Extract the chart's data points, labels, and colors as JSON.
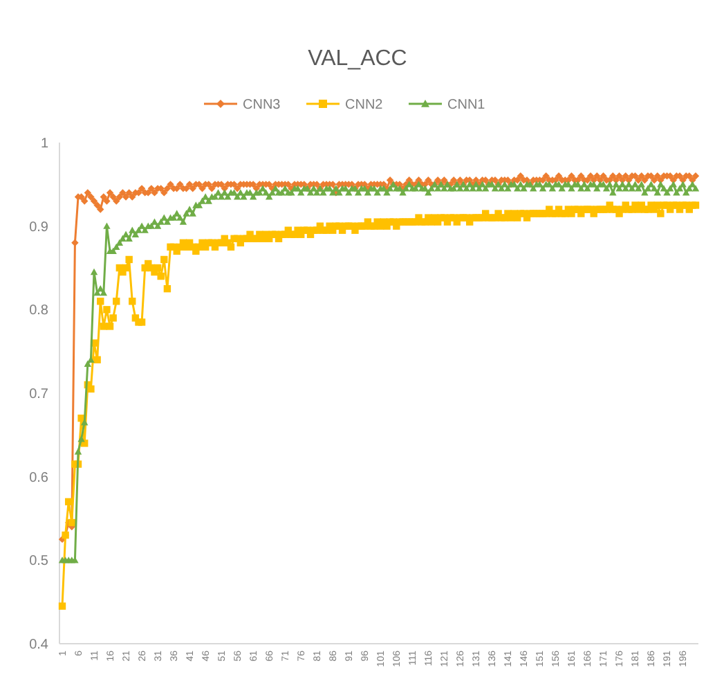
{
  "chart_data": {
    "type": "line",
    "title": "VAL_ACC",
    "categories": [
      "1",
      null,
      null,
      null,
      null,
      "6",
      null,
      null,
      null,
      null,
      "11",
      null,
      null,
      null,
      null,
      "16",
      null,
      null,
      null,
      null,
      "21",
      null,
      null,
      null,
      null,
      "26",
      null,
      null,
      null,
      null,
      "31",
      null,
      null,
      null,
      null,
      "36",
      null,
      null,
      null,
      null,
      "41",
      null,
      null,
      null,
      null,
      "46",
      null,
      null,
      null,
      null,
      "51",
      null,
      null,
      null,
      null,
      "56",
      null,
      null,
      null,
      null,
      "61",
      null,
      null,
      null,
      null,
      "66",
      null,
      null,
      null,
      null,
      "71",
      null,
      null,
      null,
      null,
      "76",
      null,
      null,
      null,
      null,
      "81",
      null,
      null,
      null,
      null,
      "86",
      null,
      null,
      null,
      null,
      "91",
      null,
      null,
      null,
      null,
      "96",
      null,
      null,
      null,
      null,
      "101",
      null,
      null,
      null,
      null,
      "106",
      null,
      null,
      null,
      null,
      "111",
      null,
      null,
      null,
      null,
      "116",
      null,
      null,
      null,
      null,
      "121",
      null,
      null,
      null,
      null,
      "126",
      null,
      null,
      null,
      null,
      "131",
      null,
      null,
      null,
      null,
      "136",
      null,
      null,
      null,
      null,
      "141",
      null,
      null,
      null,
      null,
      "146",
      null,
      null,
      null,
      null,
      "151",
      null,
      null,
      null,
      null,
      "156",
      null,
      null,
      null,
      null,
      "161",
      null,
      null,
      null,
      null,
      "166",
      null,
      null,
      null,
      null,
      "171",
      null,
      null,
      null,
      null,
      "176",
      null,
      null,
      null,
      null,
      "181",
      null,
      null,
      null,
      null,
      "186",
      null,
      null,
      null,
      null,
      "191",
      null,
      null,
      null,
      null,
      "196",
      null,
      null,
      null,
      null
    ],
    "series": [
      {
        "name": "CNN3",
        "color": "#ed7d31",
        "marker": "diamond",
        "values": [
          0.525,
          0.53,
          0.545,
          0.54,
          0.88,
          0.935,
          0.935,
          0.93,
          0.94,
          0.935,
          0.93,
          0.925,
          0.92,
          0.935,
          0.93,
          0.94,
          0.935,
          0.93,
          0.935,
          0.94,
          0.935,
          0.94,
          0.935,
          0.94,
          0.94,
          0.945,
          0.94,
          0.94,
          0.945,
          0.94,
          0.945,
          0.945,
          0.94,
          0.945,
          0.95,
          0.945,
          0.945,
          0.95,
          0.945,
          0.945,
          0.95,
          0.945,
          0.95,
          0.95,
          0.945,
          0.95,
          0.95,
          0.945,
          0.95,
          0.95,
          0.95,
          0.945,
          0.95,
          0.95,
          0.95,
          0.945,
          0.95,
          0.95,
          0.95,
          0.95,
          0.95,
          0.945,
          0.95,
          0.95,
          0.95,
          0.95,
          0.945,
          0.95,
          0.95,
          0.95,
          0.95,
          0.95,
          0.945,
          0.95,
          0.95,
          0.95,
          0.95,
          0.945,
          0.95,
          0.95,
          0.95,
          0.945,
          0.95,
          0.95,
          0.95,
          0.95,
          0.94,
          0.95,
          0.95,
          0.95,
          0.95,
          0.95,
          0.945,
          0.95,
          0.95,
          0.95,
          0.945,
          0.95,
          0.95,
          0.95,
          0.95,
          0.95,
          0.945,
          0.955,
          0.95,
          0.95,
          0.95,
          0.945,
          0.95,
          0.955,
          0.95,
          0.95,
          0.955,
          0.95,
          0.95,
          0.955,
          0.95,
          0.95,
          0.955,
          0.95,
          0.955,
          0.95,
          0.95,
          0.955,
          0.95,
          0.955,
          0.95,
          0.955,
          0.955,
          0.95,
          0.955,
          0.95,
          0.955,
          0.955,
          0.95,
          0.955,
          0.955,
          0.95,
          0.955,
          0.955,
          0.955,
          0.95,
          0.955,
          0.955,
          0.96,
          0.955,
          0.955,
          0.95,
          0.955,
          0.955,
          0.955,
          0.955,
          0.96,
          0.955,
          0.955,
          0.955,
          0.96,
          0.955,
          0.955,
          0.955,
          0.96,
          0.955,
          0.955,
          0.96,
          0.955,
          0.955,
          0.96,
          0.955,
          0.96,
          0.955,
          0.96,
          0.955,
          0.955,
          0.96,
          0.955,
          0.96,
          0.955,
          0.96,
          0.955,
          0.96,
          0.96,
          0.955,
          0.96,
          0.955,
          0.96,
          0.96,
          0.955,
          0.96,
          0.955,
          0.96,
          0.96,
          0.96,
          0.955,
          0.96,
          0.96,
          0.955,
          0.96,
          0.96,
          0.955,
          0.96
        ]
      },
      {
        "name": "CNN2",
        "color": "#ffc000",
        "marker": "square",
        "values": [
          0.445,
          0.53,
          0.57,
          0.545,
          0.615,
          0.615,
          0.67,
          0.64,
          0.71,
          0.705,
          0.76,
          0.74,
          0.81,
          0.78,
          0.8,
          0.78,
          0.79,
          0.81,
          0.85,
          0.845,
          0.85,
          0.86,
          0.81,
          0.79,
          0.785,
          0.785,
          0.85,
          0.855,
          0.85,
          0.845,
          0.85,
          0.84,
          0.86,
          0.825,
          0.875,
          0.875,
          0.87,
          0.875,
          0.88,
          0.875,
          0.88,
          0.875,
          0.87,
          0.875,
          0.88,
          0.875,
          0.88,
          0.88,
          0.875,
          0.88,
          0.88,
          0.885,
          0.88,
          0.875,
          0.885,
          0.885,
          0.88,
          0.885,
          0.885,
          0.89,
          0.885,
          0.885,
          0.89,
          0.885,
          0.89,
          0.885,
          0.89,
          0.89,
          0.885,
          0.89,
          0.89,
          0.895,
          0.89,
          0.89,
          0.895,
          0.89,
          0.895,
          0.895,
          0.89,
          0.895,
          0.895,
          0.9,
          0.895,
          0.895,
          0.9,
          0.895,
          0.9,
          0.9,
          0.895,
          0.9,
          0.9,
          0.9,
          0.895,
          0.9,
          0.9,
          0.9,
          0.905,
          0.9,
          0.9,
          0.905,
          0.9,
          0.905,
          0.9,
          0.905,
          0.905,
          0.9,
          0.905,
          0.905,
          0.905,
          0.905,
          0.905,
          0.905,
          0.91,
          0.905,
          0.905,
          0.91,
          0.905,
          0.91,
          0.905,
          0.91,
          0.91,
          0.905,
          0.91,
          0.91,
          0.905,
          0.91,
          0.91,
          0.91,
          0.905,
          0.91,
          0.91,
          0.91,
          0.91,
          0.915,
          0.91,
          0.91,
          0.91,
          0.915,
          0.91,
          0.91,
          0.915,
          0.91,
          0.915,
          0.91,
          0.915,
          0.915,
          0.91,
          0.915,
          0.915,
          0.915,
          0.915,
          0.915,
          0.915,
          0.92,
          0.915,
          0.915,
          0.92,
          0.915,
          0.915,
          0.92,
          0.915,
          0.92,
          0.92,
          0.915,
          0.92,
          0.92,
          0.92,
          0.915,
          0.92,
          0.92,
          0.92,
          0.92,
          0.925,
          0.92,
          0.92,
          0.915,
          0.92,
          0.925,
          0.92,
          0.92,
          0.925,
          0.92,
          0.925,
          0.92,
          0.92,
          0.925,
          0.92,
          0.925,
          0.915,
          0.925,
          0.925,
          0.92,
          0.925,
          0.925,
          0.92,
          0.925,
          0.925,
          0.92,
          0.925,
          0.925
        ]
      },
      {
        "name": "CNN1",
        "color": "#70ad47",
        "marker": "triangle",
        "values": [
          0.5,
          0.5,
          0.5,
          0.5,
          0.5,
          0.63,
          0.645,
          0.665,
          0.735,
          0.74,
          0.845,
          0.82,
          0.825,
          0.82,
          0.9,
          0.87,
          0.87,
          0.875,
          0.88,
          0.885,
          0.89,
          0.885,
          0.895,
          0.89,
          0.895,
          0.9,
          0.895,
          0.9,
          0.9,
          0.905,
          0.9,
          0.905,
          0.91,
          0.905,
          0.91,
          0.91,
          0.915,
          0.91,
          0.905,
          0.915,
          0.92,
          0.915,
          0.925,
          0.925,
          0.93,
          0.935,
          0.93,
          0.935,
          0.935,
          0.94,
          0.935,
          0.94,
          0.935,
          0.94,
          0.94,
          0.935,
          0.94,
          0.935,
          0.94,
          0.94,
          0.935,
          0.94,
          0.94,
          0.945,
          0.94,
          0.935,
          0.94,
          0.945,
          0.94,
          0.94,
          0.945,
          0.94,
          0.94,
          0.945,
          0.945,
          0.94,
          0.945,
          0.945,
          0.94,
          0.945,
          0.94,
          0.945,
          0.94,
          0.945,
          0.945,
          0.94,
          0.945,
          0.94,
          0.945,
          0.945,
          0.94,
          0.945,
          0.945,
          0.94,
          0.945,
          0.945,
          0.94,
          0.945,
          0.945,
          0.94,
          0.945,
          0.945,
          0.94,
          0.945,
          0.95,
          0.945,
          0.945,
          0.94,
          0.945,
          0.95,
          0.945,
          0.945,
          0.95,
          0.945,
          0.945,
          0.94,
          0.945,
          0.95,
          0.945,
          0.95,
          0.945,
          0.95,
          0.945,
          0.945,
          0.95,
          0.945,
          0.95,
          0.945,
          0.95,
          0.945,
          0.95,
          0.945,
          0.95,
          0.945,
          0.95,
          0.95,
          0.945,
          0.95,
          0.945,
          0.95,
          0.945,
          0.95,
          0.95,
          0.945,
          0.95,
          0.945,
          0.95,
          0.95,
          0.945,
          0.95,
          0.95,
          0.945,
          0.95,
          0.95,
          0.945,
          0.95,
          0.95,
          0.945,
          0.95,
          0.95,
          0.945,
          0.95,
          0.95,
          0.945,
          0.95,
          0.945,
          0.95,
          0.95,
          0.945,
          0.95,
          0.95,
          0.945,
          0.95,
          0.94,
          0.95,
          0.945,
          0.95,
          0.945,
          0.95,
          0.945,
          0.95,
          0.945,
          0.95,
          0.94,
          0.945,
          0.95,
          0.945,
          0.94,
          0.95,
          0.945,
          0.94,
          0.945,
          0.95,
          0.94,
          0.945,
          0.95,
          0.94,
          0.945,
          0.95,
          0.945
        ]
      }
    ],
    "ylim": [
      0.4,
      1
    ],
    "yticks": [
      0.4,
      0.5,
      0.6,
      0.7,
      0.8,
      0.9,
      1
    ],
    "legend": "top"
  }
}
